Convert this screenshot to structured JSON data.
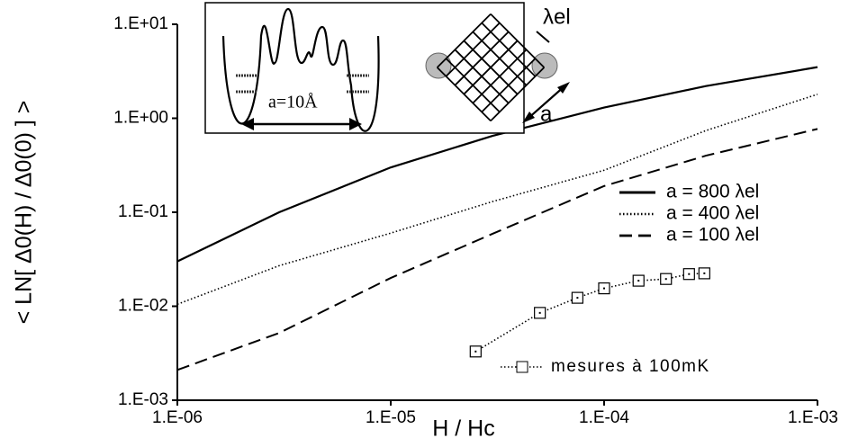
{
  "chart_data": {
    "type": "line",
    "log_x": true,
    "log_y": true,
    "xlabel": "H / Hc",
    "ylabel": "< LN[ Δ0(H) / Δ0(0) ] >",
    "xlim": [
      1e-06,
      0.001
    ],
    "xticks": [
      {
        "value": 1e-06,
        "label": "1.E-06"
      },
      {
        "value": 1e-05,
        "label": "1.E-05"
      },
      {
        "value": 0.0001,
        "label": "1.E-04"
      },
      {
        "value": 0.001,
        "label": "1.E-03"
      }
    ],
    "ylim": [
      0.001,
      10
    ],
    "yticks": [
      {
        "value": 0.001,
        "label": "1.E-03"
      },
      {
        "value": 0.01,
        "label": "1.E-02"
      },
      {
        "value": 0.1,
        "label": "1.E-01"
      },
      {
        "value": 1,
        "label": "1.E+00"
      },
      {
        "value": 10,
        "label": "1.E+01"
      }
    ],
    "series": [
      {
        "name": "a = 800 λel",
        "color": "#000000",
        "style": "solid",
        "x": [
          1e-06,
          3e-06,
          1e-05,
          3e-05,
          0.0001,
          0.0003,
          0.001
        ],
        "values": [
          0.03,
          0.1,
          0.3,
          0.65,
          1.3,
          2.2,
          3.5
        ]
      },
      {
        "name": "a = 400 λel",
        "color": "#000000",
        "style": "dotted",
        "x": [
          1e-06,
          3e-06,
          1e-05,
          3e-05,
          0.0001,
          0.0003,
          0.001
        ],
        "values": [
          0.0105,
          0.027,
          0.06,
          0.13,
          0.28,
          0.74,
          1.8
        ]
      },
      {
        "name": "a = 100 λel",
        "color": "#000000",
        "style": "dashed",
        "x": [
          1e-06,
          3e-06,
          1e-05,
          3e-05,
          0.0001,
          0.0003,
          0.001
        ],
        "values": [
          0.0021,
          0.0052,
          0.02,
          0.059,
          0.19,
          0.4,
          0.77
        ]
      },
      {
        "name": "mesures à 100mK",
        "color": "#000000",
        "style": "dotted",
        "marker": "square",
        "x": [
          2.5e-05,
          5e-05,
          7.5e-05,
          0.0001,
          0.000145,
          0.000195,
          0.00025,
          0.000295
        ],
        "values": [
          0.0033,
          0.0085,
          0.0123,
          0.0155,
          0.0187,
          0.0195,
          0.022,
          0.0224
        ]
      }
    ],
    "annotations": [
      "a=10Å",
      "λel",
      "a"
    ]
  }
}
